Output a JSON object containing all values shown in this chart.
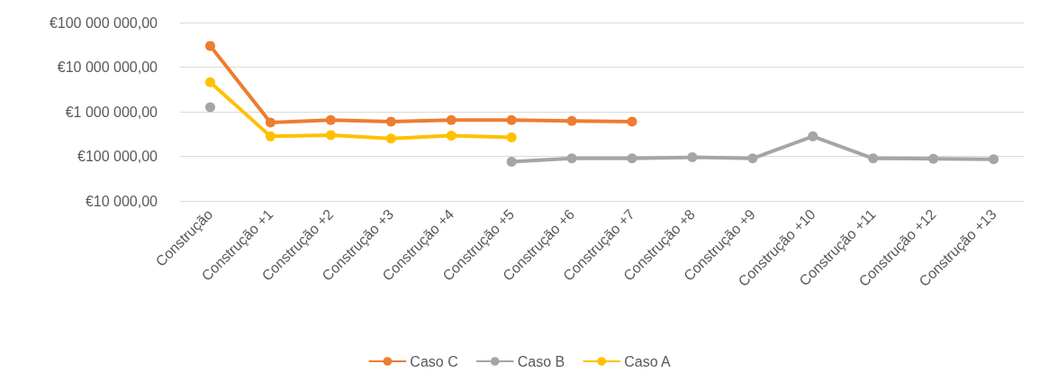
{
  "chart_data": {
    "type": "line",
    "log": "y",
    "grid": "y",
    "legend": "bottom",
    "marker": "circle",
    "line_style": "solid",
    "categories": [
      "Construção",
      "Construção +1",
      "Construção +2",
      "Construção +3",
      "Construção +4",
      "Construção +5",
      "Construção +6",
      "Construção +7",
      "Construção +8",
      "Construção +9",
      "Construção +10",
      "Construção +11",
      "Construção +12",
      "Construção +13"
    ],
    "ylim": [
      10000,
      100000000
    ],
    "yticks": [
      {
        "value": 10000,
        "label": "€10 000,00"
      },
      {
        "value": 100000,
        "label": "€100 000,00"
      },
      {
        "value": 1000000,
        "label": "€1 000 000,00"
      },
      {
        "value": 10000000,
        "label": "€10 000 000,00"
      },
      {
        "value": 100000000,
        "label": "€100 000 000,00"
      }
    ],
    "series": [
      {
        "name": "Caso C",
        "color": "#ed7d31",
        "values": [
          30000000,
          570000,
          650000,
          600000,
          650000,
          650000,
          620000,
          600000,
          null,
          null,
          null,
          null,
          null,
          null
        ]
      },
      {
        "name": "Caso B",
        "color": "#a5a5a5",
        "values": [
          1260000,
          null,
          null,
          null,
          null,
          76000,
          90000,
          90000,
          95000,
          90000,
          280000,
          90000,
          88000,
          86000
        ]
      },
      {
        "name": "Caso A",
        "color": "#ffc000",
        "values": [
          4600000,
          280000,
          300000,
          250000,
          290000,
          265000,
          null,
          null,
          null,
          null,
          null,
          null,
          null,
          null
        ]
      }
    ]
  }
}
